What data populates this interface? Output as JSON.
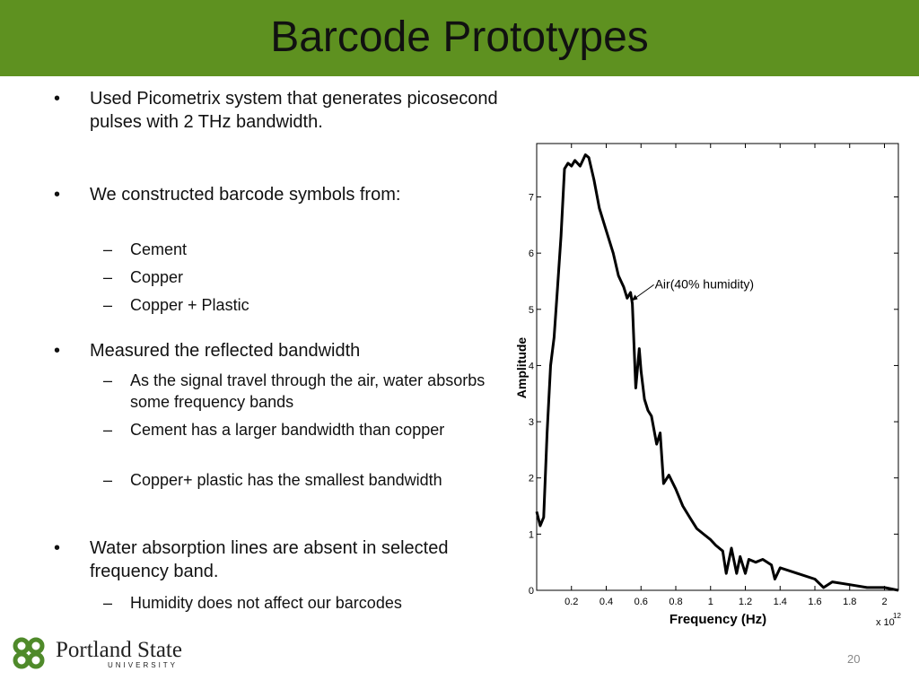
{
  "header": {
    "title": "Barcode Prototypes"
  },
  "bullets": [
    {
      "text": "Used Picometrix system that generates picosecond pulses with 2 THz bandwidth.",
      "subs": []
    },
    {
      "text": "We constructed barcode symbols from:",
      "subs": [
        "Cement",
        "Copper",
        "Copper + Plastic"
      ]
    },
    {
      "text": "Measured the reflected bandwidth",
      "subs": [
        "As the signal travel through the air, water absorbs some frequency bands",
        "Cement has a larger bandwidth than copper",
        "Copper+ plastic has the smallest bandwidth"
      ]
    },
    {
      "text": "Water absorption lines are absent in selected frequency band.",
      "subs": [
        "Humidity does not affect our barcodes"
      ]
    }
  ],
  "chart_data": {
    "type": "line",
    "x_label": "Frequency (Hz)",
    "x_multiplier": "x 10",
    "x_multiplier_exponent": "12",
    "y_label": "Amplitude",
    "color": "#000000",
    "x": [
      0,
      0.02,
      0.04,
      0.06,
      0.08,
      0.1,
      0.12,
      0.14,
      0.16,
      0.18,
      0.2,
      0.22,
      0.25,
      0.28,
      0.3,
      0.33,
      0.36,
      0.4,
      0.44,
      0.47,
      0.5,
      0.52,
      0.54,
      0.55,
      0.57,
      0.59,
      0.6,
      0.62,
      0.64,
      0.66,
      0.69,
      0.71,
      0.73,
      0.76,
      0.8,
      0.84,
      0.88,
      0.92,
      0.96,
      1.0,
      1.03,
      1.07,
      1.09,
      1.12,
      1.15,
      1.17,
      1.2,
      1.22,
      1.26,
      1.3,
      1.35,
      1.37,
      1.4,
      1.5,
      1.6,
      1.65,
      1.7,
      1.8,
      1.9,
      2.0,
      2.08
    ],
    "values": [
      1.4,
      1.15,
      1.3,
      2.8,
      4.0,
      4.5,
      5.4,
      6.3,
      7.5,
      7.6,
      7.55,
      7.65,
      7.55,
      7.75,
      7.7,
      7.3,
      6.8,
      6.4,
      6.0,
      5.6,
      5.4,
      5.2,
      5.3,
      5.1,
      3.6,
      4.3,
      3.9,
      3.4,
      3.2,
      3.1,
      2.6,
      2.8,
      1.9,
      2.05,
      1.8,
      1.5,
      1.3,
      1.1,
      1.0,
      0.9,
      0.8,
      0.7,
      0.3,
      0.75,
      0.3,
      0.6,
      0.3,
      0.55,
      0.5,
      0.55,
      0.45,
      0.2,
      0.4,
      0.3,
      0.2,
      0.05,
      0.15,
      0.1,
      0.05,
      0.05,
      0.0
    ],
    "xlim": [
      0,
      2.08
    ],
    "ylim": [
      0,
      7.95
    ],
    "xticks": [
      0.2,
      0.4,
      0.6,
      0.8,
      1,
      1.2,
      1.4,
      1.6,
      1.8,
      2
    ],
    "yticks": [
      0,
      1,
      2,
      3,
      4,
      5,
      6,
      7
    ],
    "annotations": [
      {
        "text": "Air(40% humidity)",
        "x": 0.545,
        "y": 5.15
      }
    ]
  },
  "footer": {
    "logo_name": "Portland State",
    "logo_sub": "UNIVERSITY",
    "page_number": "20"
  }
}
